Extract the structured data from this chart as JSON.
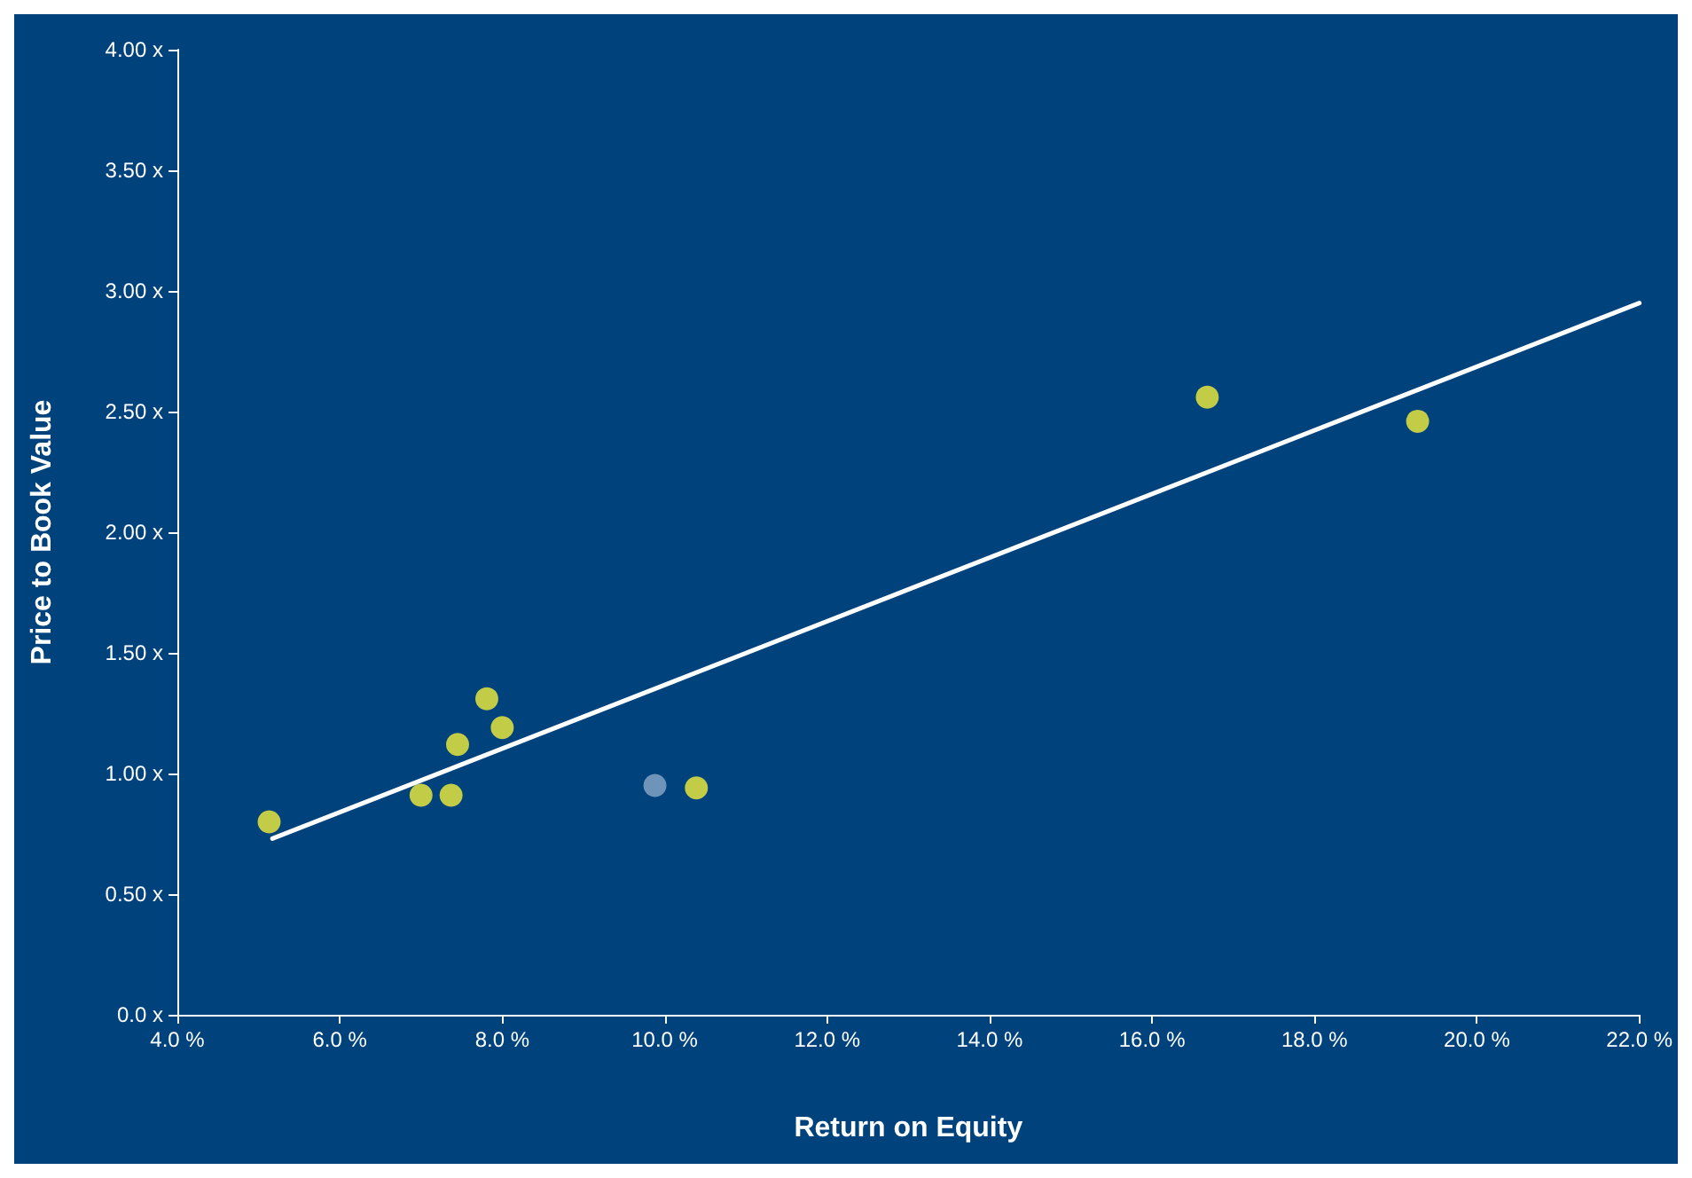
{
  "chart_data": {
    "type": "scatter",
    "xlabel": "Return on Equity",
    "ylabel": "Price to Book Value",
    "grid": false,
    "marker": "circle",
    "xlim": [
      4,
      22
    ],
    "xticks": [
      {
        "value": 4,
        "label": "4.0 %"
      },
      {
        "value": 6,
        "label": "6.0 %"
      },
      {
        "value": 8,
        "label": "8.0 %"
      },
      {
        "value": 10,
        "label": "10.0 %"
      },
      {
        "value": 12,
        "label": "12.0 %"
      },
      {
        "value": 14,
        "label": "14.0 %"
      },
      {
        "value": 16,
        "label": "16.0 %"
      },
      {
        "value": 18,
        "label": "18.0 %"
      },
      {
        "value": 20,
        "label": "20.0 %"
      },
      {
        "value": 22,
        "label": "22.0 %"
      }
    ],
    "ylim": [
      0,
      4
    ],
    "yticks": [
      {
        "value": 0,
        "label": "0.0 x"
      },
      {
        "value": 0.5,
        "label": "0.50 x"
      },
      {
        "value": 1,
        "label": "1.00 x"
      },
      {
        "value": 1.5,
        "label": "1.50 x"
      },
      {
        "value": 2,
        "label": "2.00 x"
      },
      {
        "value": 2.5,
        "label": "2.50 x"
      },
      {
        "value": 3,
        "label": "3.00 x"
      },
      {
        "value": 3.5,
        "label": "3.50 x"
      },
      {
        "value": 4,
        "label": "4.00 x"
      }
    ],
    "series": [
      {
        "x": [
          5.13,
          7.0,
          7.37,
          7.45,
          7.81,
          8.0,
          9.88,
          10.39,
          16.68,
          19.27
        ],
        "values": [
          0.8,
          0.91,
          0.91,
          1.12,
          1.31,
          1.19,
          0.95,
          0.94,
          2.56,
          2.46
        ],
        "colors": [
          "#f2ef3a",
          "#f2ef3a",
          "#f2ef3a",
          "#f2ef3a",
          "#f2ef3a",
          "#f2ef3a",
          "#8aa9c8",
          "#f2ef3a",
          "#f2ef3a",
          "#f2ef3a"
        ]
      },
      {
        "type": "line",
        "x": [
          5.17,
          22
        ],
        "values": [
          0.73,
          2.95
        ],
        "color": "#ffffff",
        "marker": "none",
        "line_style": "solid"
      }
    ]
  }
}
